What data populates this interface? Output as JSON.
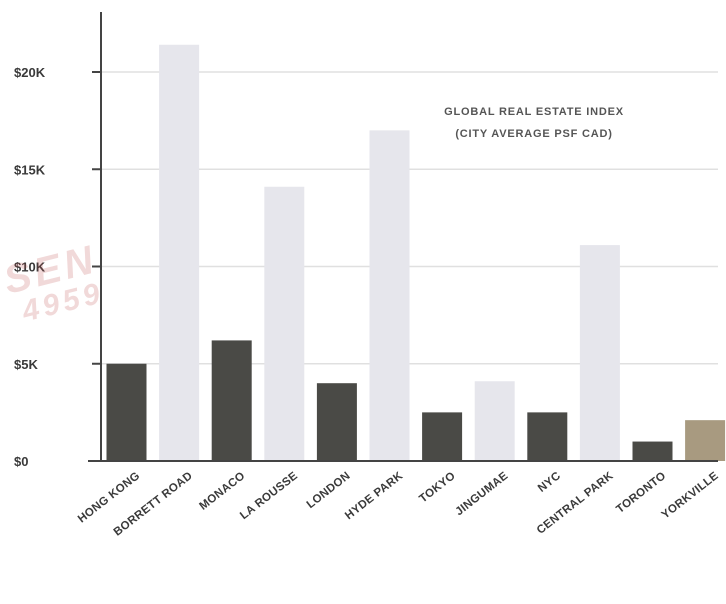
{
  "chart_data": {
    "type": "bar",
    "title": [
      "GLOBAL REAL ESTATE INDEX",
      "(CITY AVERAGE PSF CAD)"
    ],
    "xlabel": "",
    "ylabel": "",
    "ylim": [
      0,
      22000
    ],
    "yticks": [
      {
        "value": 0,
        "label": "$0"
      },
      {
        "value": 5000,
        "label": "$5K"
      },
      {
        "value": 10000,
        "label": "$10K"
      },
      {
        "value": 15000,
        "label": "$15K"
      },
      {
        "value": 20000,
        "label": "$20K"
      }
    ],
    "grid": true,
    "categories": [
      "HONG KONG",
      "BORRETT ROAD",
      "MONACO",
      "LA ROUSSE",
      "LONDON",
      "HYDE PARK",
      "TOKYO",
      "JINGUMAE",
      "NYC",
      "CENTRAL PARK",
      "TORONTO",
      "YORKVILLE"
    ],
    "values": [
      5000,
      21400,
      6200,
      14100,
      4000,
      17000,
      2500,
      4100,
      2500,
      11100,
      1000,
      2100
    ],
    "bar_colors": [
      "#4a4a46",
      "#e6e6ec",
      "#4a4a46",
      "#e6e6ec",
      "#4a4a46",
      "#e6e6ec",
      "#4a4a46",
      "#e6e6ec",
      "#4a4a46",
      "#e6e6ec",
      "#4a4a46",
      "#a89a80"
    ],
    "axis_color": "#444444",
    "grid_color": "#e0e0e0"
  },
  "watermark": {
    "line1": "SEN",
    "line2": "4959"
  }
}
